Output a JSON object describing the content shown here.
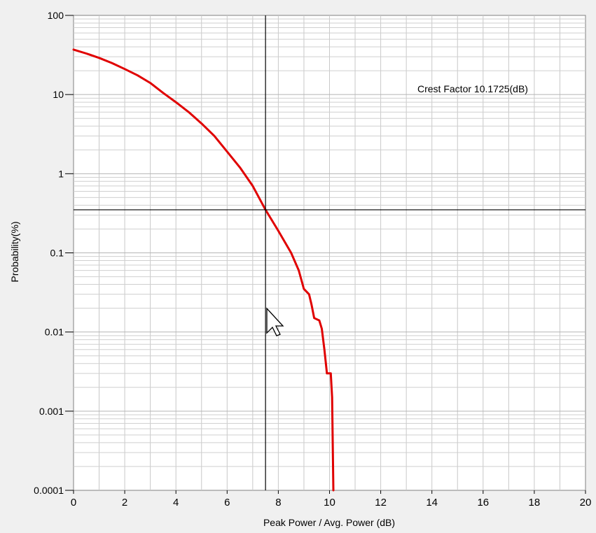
{
  "chart_data": {
    "type": "line",
    "title": "",
    "xlabel": "Peak Power / Avg. Power (dB)",
    "ylabel": "Probability(%)",
    "xlim": [
      0,
      20
    ],
    "ylim": [
      0.0001,
      100
    ],
    "yscale": "log",
    "grid": true,
    "x_ticks": [
      "0",
      "2",
      "4",
      "6",
      "8",
      "10",
      "12",
      "14",
      "16",
      "18",
      "20"
    ],
    "y_ticks": [
      "100",
      "10",
      "1",
      "0.1",
      "0.01",
      "0.001",
      "0.0001"
    ],
    "annotation": "Crest Factor 10.1725(dB)",
    "cursor": {
      "x": 7.5,
      "y": 0.35
    },
    "series": [
      {
        "color": "#e00000",
        "points": [
          [
            0,
            37
          ],
          [
            0.5,
            33
          ],
          [
            1,
            29
          ],
          [
            1.5,
            25
          ],
          [
            2,
            21
          ],
          [
            2.5,
            17.5
          ],
          [
            3,
            14
          ],
          [
            3.5,
            10.5
          ],
          [
            4,
            8
          ],
          [
            4.5,
            6
          ],
          [
            5,
            4.3
          ],
          [
            5.5,
            3
          ],
          [
            6,
            1.9
          ],
          [
            6.5,
            1.2
          ],
          [
            7,
            0.7
          ],
          [
            7.5,
            0.35
          ],
          [
            8,
            0.19
          ],
          [
            8.5,
            0.1
          ],
          [
            8.8,
            0.06
          ],
          [
            9,
            0.035
          ],
          [
            9.2,
            0.03
          ],
          [
            9.3,
            0.022
          ],
          [
            9.4,
            0.015
          ],
          [
            9.6,
            0.014
          ],
          [
            9.7,
            0.011
          ],
          [
            9.8,
            0.006
          ],
          [
            9.9,
            0.003
          ],
          [
            10.05,
            0.003
          ],
          [
            10.1,
            0.0015
          ],
          [
            10.15,
            0.0001
          ]
        ]
      }
    ]
  }
}
